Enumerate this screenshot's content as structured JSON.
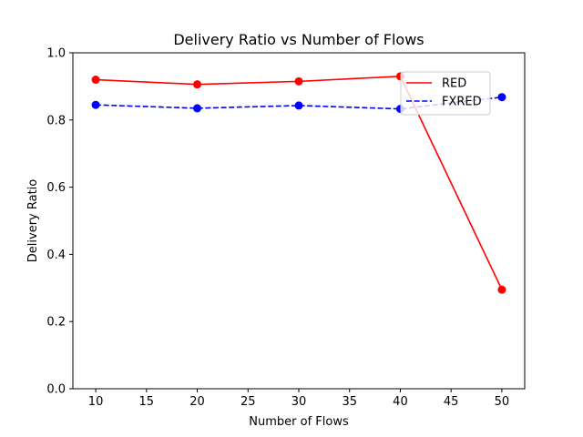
{
  "chart_data": {
    "type": "line",
    "title": "Delivery Ratio vs Number of Flows",
    "xlabel": "Number of Flows",
    "ylabel": "Delivery Ratio",
    "x": [
      10,
      20,
      30,
      40,
      50
    ],
    "xlim": [
      7.75,
      52.25
    ],
    "ylim": [
      0.0,
      1.0
    ],
    "xticks": [
      10,
      15,
      20,
      25,
      30,
      35,
      40,
      45,
      50
    ],
    "yticks": [
      0.0,
      0.2,
      0.4,
      0.6,
      0.8,
      1.0
    ],
    "grid": false,
    "legend_position": "upper right",
    "series": [
      {
        "name": "RED",
        "values": [
          0.92,
          0.906,
          0.915,
          0.93,
          0.295
        ],
        "color": "#ff0000",
        "linestyle": "solid",
        "marker": "circle"
      },
      {
        "name": "FXRED",
        "values": [
          0.845,
          0.835,
          0.843,
          0.833,
          0.868
        ],
        "color": "#0000ff",
        "linestyle": "dashed",
        "marker": "circle"
      }
    ]
  }
}
